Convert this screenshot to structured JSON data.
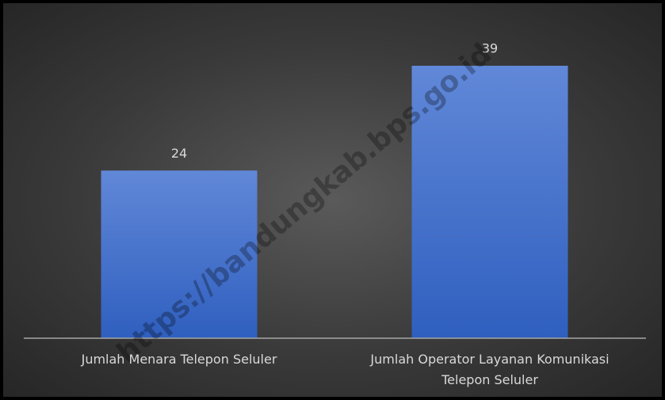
{
  "chart_data": {
    "type": "bar",
    "categories": [
      "Jumlah Menara Telepon Seluler",
      "Jumlah Operator Layanan Komunikasi Telepon Seluler"
    ],
    "values": [
      24,
      39
    ],
    "color": "#4a72cc",
    "watermark": "https://bandungkab.bps.go.id"
  }
}
